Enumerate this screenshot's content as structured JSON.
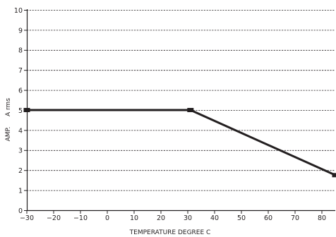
{
  "chart_data": {
    "type": "line",
    "xlabel": "TEMPERATURE   DEGREE C",
    "ylabel_left": "AMP.",
    "ylabel_right": "A rms",
    "xlim": [
      -30,
      85
    ],
    "ylim": [
      0,
      10
    ],
    "x_ticks": [
      -30,
      -20,
      -10,
      0,
      10,
      20,
      30,
      40,
      50,
      60,
      70,
      80
    ],
    "x_tick_labels": [
      "−30",
      "−20",
      "−10",
      "0",
      "10",
      "20",
      "30",
      "40",
      "50",
      "60",
      "70",
      "80"
    ],
    "y_ticks": [
      0,
      1,
      2,
      3,
      4,
      5,
      6,
      7,
      8,
      9,
      10
    ],
    "y_tick_labels": [
      "0",
      "1",
      "2",
      "3",
      "4",
      "5",
      "6",
      "7",
      "8",
      "9",
      "10"
    ],
    "grid": "horizontal dashed",
    "series": [
      {
        "color": "#231f20",
        "points": [
          [
            -30,
            5
          ],
          [
            31,
            5
          ],
          [
            85,
            1.75
          ]
        ],
        "markers": [
          [
            -30,
            5
          ],
          [
            31,
            5
          ],
          [
            85,
            1.75
          ]
        ]
      }
    ]
  }
}
